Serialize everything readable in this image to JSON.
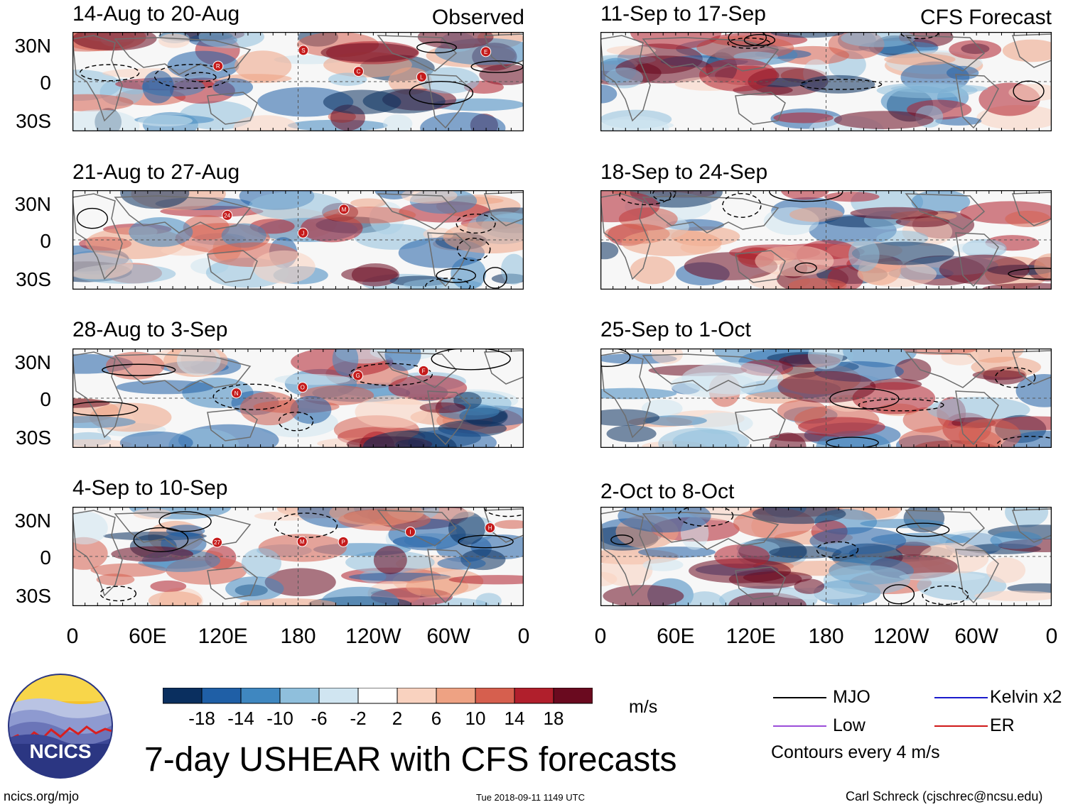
{
  "side_labels": {
    "observed": "Observed",
    "forecast": "CFS Forecast"
  },
  "panels": [
    {
      "title": "14-Aug to 20-Aug",
      "kind": "observed",
      "storms": [
        "R",
        "S",
        "C",
        "L",
        "E"
      ]
    },
    {
      "title": "21-Aug to 27-Aug",
      "kind": "observed",
      "storms": [
        "24",
        "J",
        "M"
      ]
    },
    {
      "title": "28-Aug to 3-Sep",
      "kind": "observed",
      "storms": [
        "N",
        "O",
        "G",
        "F"
      ]
    },
    {
      "title": "4-Sep to 10-Sep",
      "kind": "observed",
      "storms": [
        "27",
        "M",
        "P",
        "I",
        "H"
      ]
    },
    {
      "title": "11-Sep to 17-Sep",
      "kind": "forecast",
      "storms": []
    },
    {
      "title": "18-Sep to 24-Sep",
      "kind": "forecast",
      "storms": []
    },
    {
      "title": "25-Sep to 1-Oct",
      "kind": "forecast",
      "storms": []
    },
    {
      "title": "2-Oct to 8-Oct",
      "kind": "forecast",
      "storms": []
    }
  ],
  "lat_labels": [
    "30N",
    "0",
    "30S"
  ],
  "lon_labels": [
    "0",
    "60E",
    "120E",
    "180",
    "120W",
    "60W",
    "0"
  ],
  "colorbar": {
    "labels": [
      "-18",
      "-14",
      "-10",
      "-6",
      "-2",
      "2",
      "6",
      "10",
      "14",
      "18"
    ],
    "colors": [
      "#0a2f5f",
      "#1f5fa6",
      "#3f87c0",
      "#8fbfdc",
      "#d0e5f1",
      "#ffffff",
      "#f9d2bf",
      "#eea283",
      "#d65f4e",
      "#b11f2c",
      "#6a0a1f"
    ],
    "units": "m/s"
  },
  "legend": {
    "items": [
      {
        "label": "MJO",
        "color": "#000000"
      },
      {
        "label": "Kelvin x2",
        "color": "#1a1acc"
      },
      {
        "label": "Low",
        "color": "#9b4dd9"
      },
      {
        "label": "ER",
        "color": "#d01818"
      }
    ],
    "contour_note": "Contours every 4 m/s"
  },
  "logo_text": "NCICS",
  "main_title": "7-day USHEAR with CFS forecasts",
  "footer": {
    "url": "ncics.org/mjo",
    "timestamp": "Tue 2018-09-11 1149 UTC",
    "credit": "Carl Schreck (cjschrec@ncsu.edu)"
  }
}
